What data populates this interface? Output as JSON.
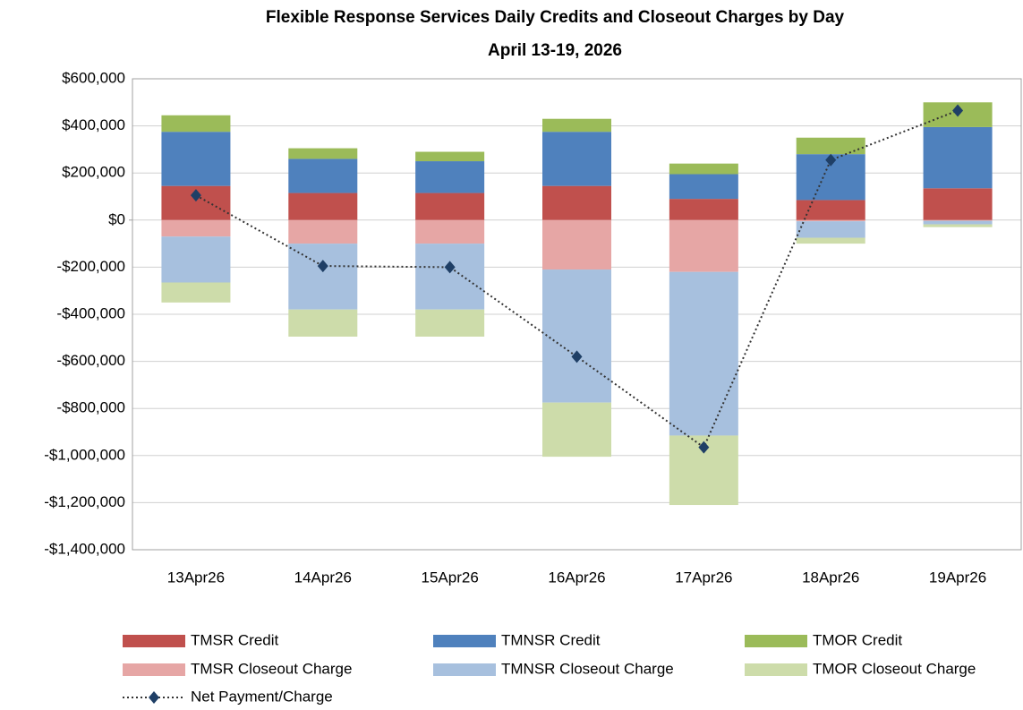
{
  "chart_data": {
    "type": "stacked_bar_line",
    "title": "Flexible Response Services Daily Credits and Closeout Charges by Day",
    "subtitle": "April 13-19,  2026",
    "categories": [
      "13Apr26",
      "14Apr26",
      "15Apr26",
      "16Apr26",
      "17Apr26",
      "18Apr26",
      "19Apr26"
    ],
    "series": [
      {
        "name": "TMSR Credit",
        "color": "#c0504d",
        "values": [
          145000,
          115000,
          115000,
          145000,
          90000,
          85000,
          135000
        ]
      },
      {
        "name": "TMNSR Credit",
        "color": "#4f81bd",
        "values": [
          230000,
          145000,
          135000,
          230000,
          105000,
          195000,
          260000
        ]
      },
      {
        "name": "TMOR Credit",
        "color": "#9bbb59",
        "values": [
          70000,
          45000,
          40000,
          55000,
          45000,
          70000,
          105000
        ]
      },
      {
        "name": "TMSR Closeout Charge",
        "color": "#e6a6a5",
        "values": [
          -70000,
          -100000,
          -100000,
          -210000,
          -220000,
          -5000,
          -3000
        ]
      },
      {
        "name": "TMNSR Closeout Charge",
        "color": "#a7c0de",
        "values": [
          -195000,
          -280000,
          -280000,
          -565000,
          -695000,
          -70000,
          -15000
        ]
      },
      {
        "name": "TMOR Closeout Charge",
        "color": "#cddcaa",
        "values": [
          -85000,
          -115000,
          -115000,
          -230000,
          -295000,
          -25000,
          -12000
        ]
      },
      {
        "name": "Net Payment/Charge",
        "color": "#1f3f66",
        "type": "line",
        "values": [
          105000,
          -195000,
          -200000,
          -580000,
          -965000,
          255000,
          465000
        ]
      }
    ],
    "ylim": [
      -1400000,
      600000
    ],
    "yticks": [
      {
        "value": -1400000,
        "label": "-$1,400,000"
      },
      {
        "value": -1200000,
        "label": "-$1,200,000"
      },
      {
        "value": -1000000,
        "label": "-$1,000,000"
      },
      {
        "value": -800000,
        "label": "-$800,000"
      },
      {
        "value": -600000,
        "label": "-$600,000"
      },
      {
        "value": -400000,
        "label": "-$400,000"
      },
      {
        "value": -200000,
        "label": "-$200,000"
      },
      {
        "value": 0,
        "label": "$0"
      },
      {
        "value": 200000,
        "label": "$200,000"
      },
      {
        "value": 400000,
        "label": "$400,000"
      },
      {
        "value": 600000,
        "label": "$600,000"
      }
    ],
    "grid": true,
    "legend": "bottom"
  }
}
